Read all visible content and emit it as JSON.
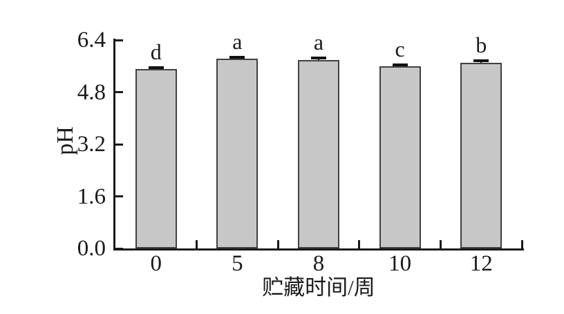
{
  "figure": {
    "background": "#ffffff",
    "text_color": "#1a1a1a"
  },
  "chart_data": {
    "type": "bar",
    "title": "",
    "xlabel": "贮藏时间/周",
    "ylabel": "pH",
    "categories": [
      "0",
      "5",
      "8",
      "10",
      "12"
    ],
    "values": [
      5.52,
      5.83,
      5.78,
      5.6,
      5.71
    ],
    "errors": [
      0.03,
      0.03,
      0.06,
      0.04,
      0.06
    ],
    "sig_letters": [
      "d",
      "a",
      "a",
      "c",
      "b"
    ],
    "yticks": [
      "0.0",
      "1.6",
      "3.2",
      "4.8",
      "6.4"
    ],
    "ylim": [
      0,
      6.4
    ],
    "grid": false,
    "legend": null,
    "bar_fill": "#c7c7c7",
    "bar_border": "#404040",
    "axis_color": "#1a1a1a",
    "error_color": "#111111"
  }
}
